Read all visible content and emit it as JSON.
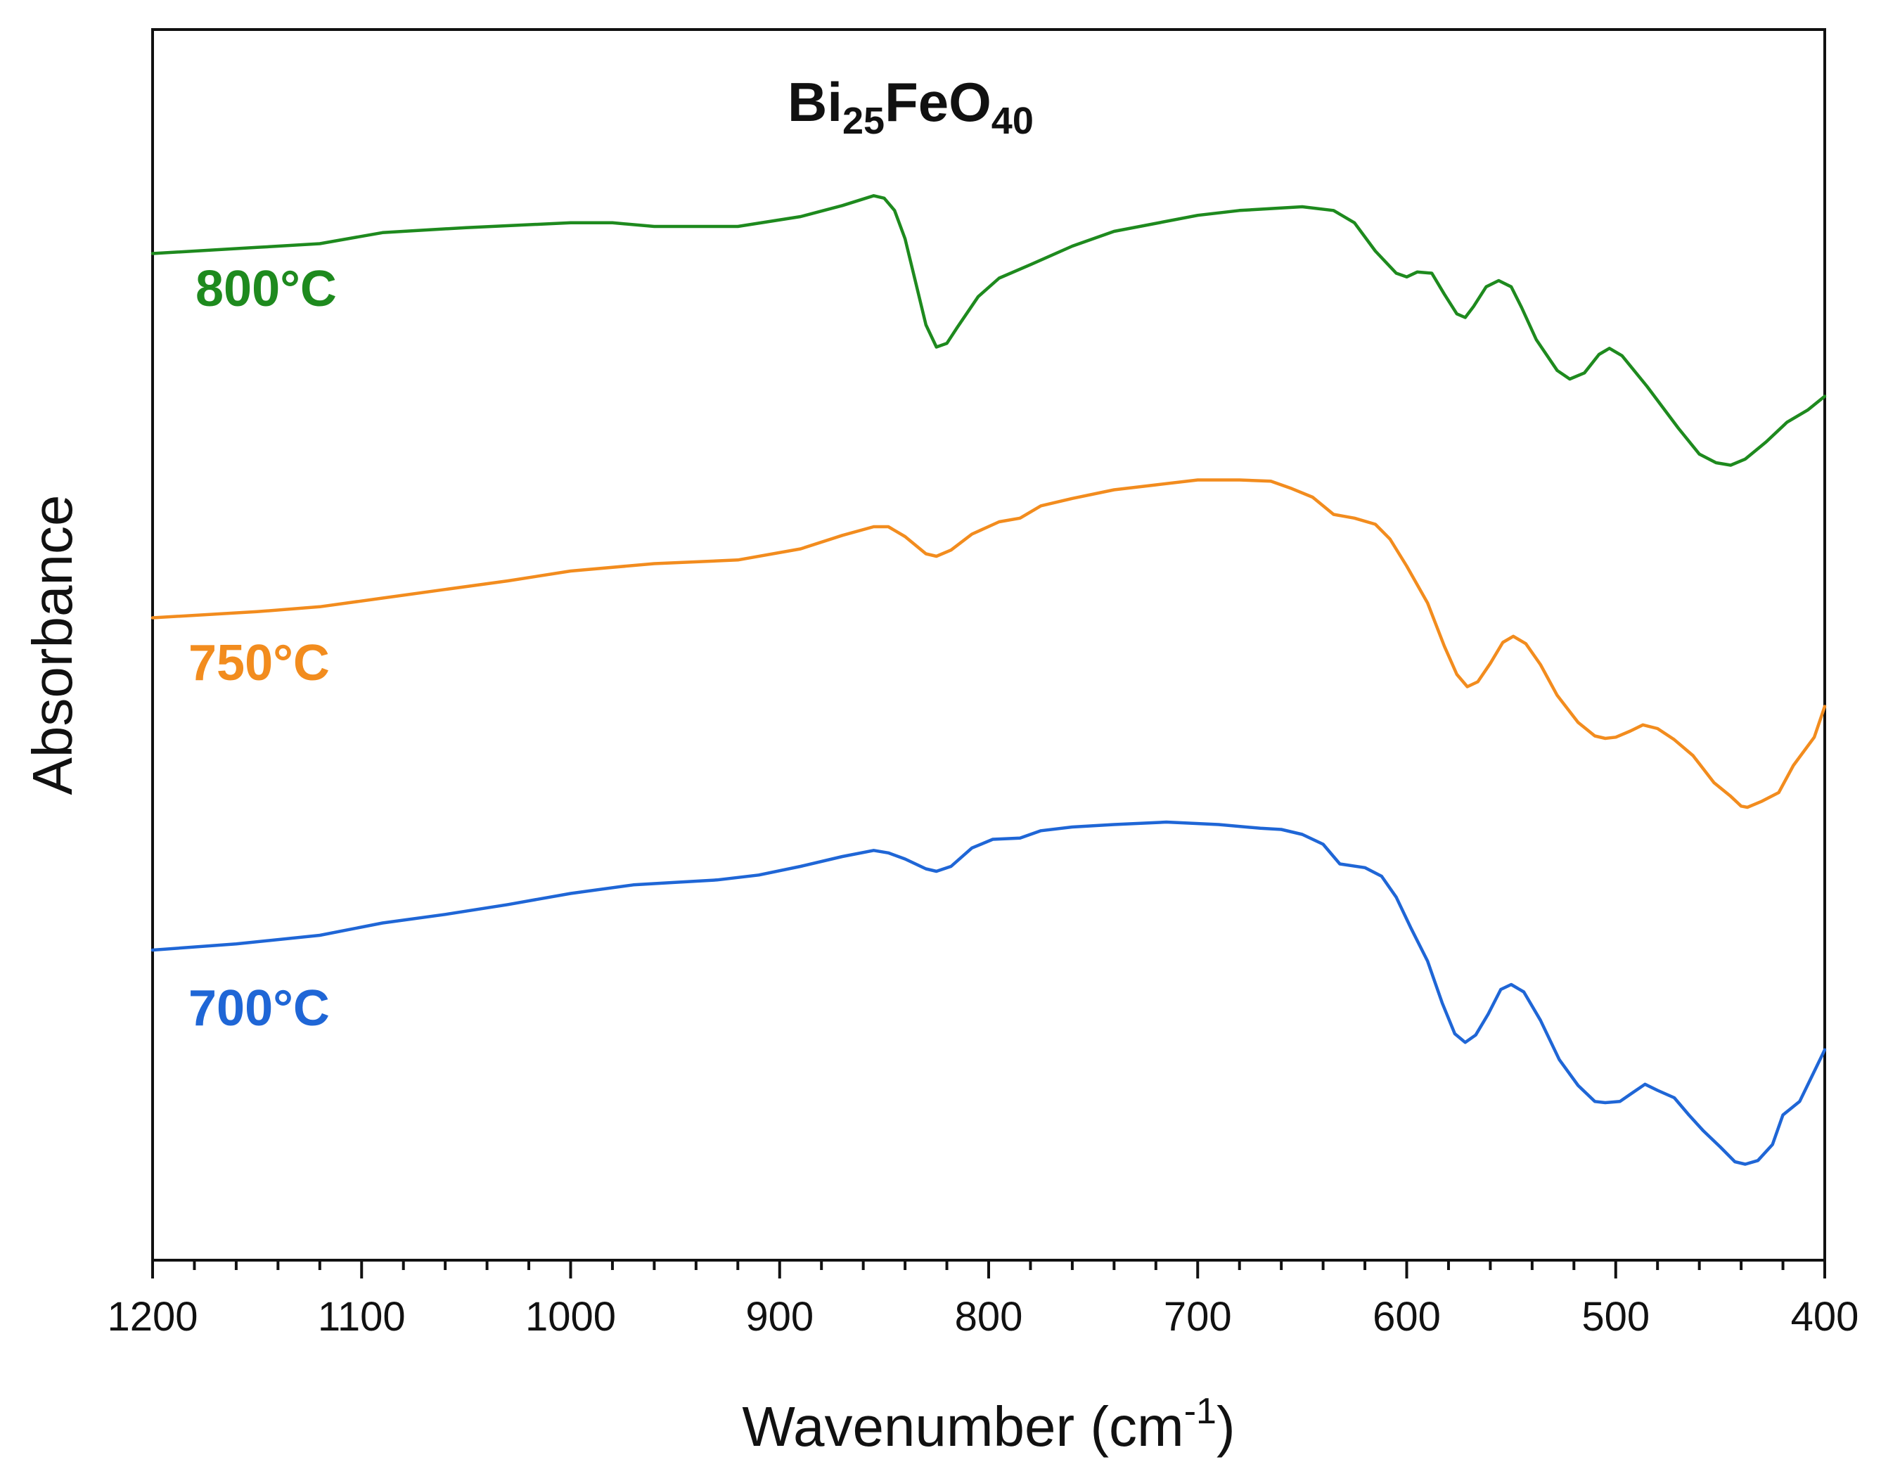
{
  "chart_data": {
    "type": "line",
    "title": {
      "main": "Bi",
      "sub1": "25",
      "mid": "FeO",
      "sub2": "40"
    },
    "xlabel": {
      "text": "Wavenumber (cm",
      "sup": "-1",
      "close": ")"
    },
    "ylabel": "Absorbance",
    "xlim": [
      1200,
      400
    ],
    "x_reversed": true,
    "ylim": [
      0,
      100
    ],
    "x_ticks": [
      1200,
      1100,
      1000,
      900,
      800,
      700,
      600,
      500,
      400
    ],
    "x_tick_labels": [
      "1200",
      "1100",
      "1000",
      "900",
      "800",
      "700",
      "600",
      "500",
      "400"
    ],
    "y_ticks_shown": false,
    "series": [
      {
        "name": "800°C",
        "color": "#1e8a1e",
        "points": [
          [
            1200,
            81.8
          ],
          [
            1150,
            82.3
          ],
          [
            1120,
            82.6
          ],
          [
            1090,
            83.5
          ],
          [
            1050,
            83.9
          ],
          [
            1000,
            84.3
          ],
          [
            980,
            84.3
          ],
          [
            960,
            84.0
          ],
          [
            920,
            84.0
          ],
          [
            890,
            84.8
          ],
          [
            870,
            85.7
          ],
          [
            855,
            86.5
          ],
          [
            850,
            86.3
          ],
          [
            845,
            85.3
          ],
          [
            840,
            83.0
          ],
          [
            835,
            79.5
          ],
          [
            830,
            76.0
          ],
          [
            825,
            74.2
          ],
          [
            820,
            74.5
          ],
          [
            815,
            75.8
          ],
          [
            805,
            78.3
          ],
          [
            795,
            79.8
          ],
          [
            780,
            80.9
          ],
          [
            760,
            82.4
          ],
          [
            740,
            83.6
          ],
          [
            700,
            84.9
          ],
          [
            680,
            85.3
          ],
          [
            660,
            85.5
          ],
          [
            650,
            85.6
          ],
          [
            635,
            85.3
          ],
          [
            625,
            84.3
          ],
          [
            615,
            82.0
          ],
          [
            605,
            80.2
          ],
          [
            600,
            79.9
          ],
          [
            595,
            80.3
          ],
          [
            588,
            80.2
          ],
          [
            582,
            78.5
          ],
          [
            576,
            76.9
          ],
          [
            572,
            76.6
          ],
          [
            568,
            77.5
          ],
          [
            562,
            79.1
          ],
          [
            556,
            79.6
          ],
          [
            550,
            79.1
          ],
          [
            545,
            77.4
          ],
          [
            538,
            74.8
          ],
          [
            528,
            72.3
          ],
          [
            522,
            71.6
          ],
          [
            515,
            72.1
          ],
          [
            508,
            73.6
          ],
          [
            503,
            74.1
          ],
          [
            497,
            73.5
          ],
          [
            485,
            71.0
          ],
          [
            470,
            67.6
          ],
          [
            460,
            65.5
          ],
          [
            452,
            64.8
          ],
          [
            445,
            64.6
          ],
          [
            438,
            65.1
          ],
          [
            428,
            66.5
          ],
          [
            418,
            68.1
          ],
          [
            408,
            69.1
          ],
          [
            400,
            70.2
          ]
        ]
      },
      {
        "name": "750°C",
        "color": "#f28c1e",
        "points": [
          [
            1200,
            52.2
          ],
          [
            1150,
            52.7
          ],
          [
            1120,
            53.1
          ],
          [
            1090,
            53.8
          ],
          [
            1060,
            54.5
          ],
          [
            1030,
            55.2
          ],
          [
            1000,
            56.0
          ],
          [
            960,
            56.6
          ],
          [
            920,
            56.9
          ],
          [
            890,
            57.8
          ],
          [
            870,
            58.9
          ],
          [
            855,
            59.6
          ],
          [
            848,
            59.6
          ],
          [
            840,
            58.8
          ],
          [
            830,
            57.4
          ],
          [
            825,
            57.2
          ],
          [
            818,
            57.7
          ],
          [
            808,
            59.0
          ],
          [
            795,
            60.0
          ],
          [
            785,
            60.3
          ],
          [
            775,
            61.3
          ],
          [
            760,
            61.9
          ],
          [
            740,
            62.6
          ],
          [
            720,
            63.0
          ],
          [
            700,
            63.4
          ],
          [
            680,
            63.4
          ],
          [
            665,
            63.3
          ],
          [
            655,
            62.7
          ],
          [
            645,
            62.0
          ],
          [
            635,
            60.6
          ],
          [
            625,
            60.3
          ],
          [
            615,
            59.8
          ],
          [
            608,
            58.6
          ],
          [
            600,
            56.4
          ],
          [
            590,
            53.4
          ],
          [
            582,
            49.9
          ],
          [
            576,
            47.6
          ],
          [
            571,
            46.6
          ],
          [
            566,
            47.0
          ],
          [
            560,
            48.5
          ],
          [
            554,
            50.2
          ],
          [
            549,
            50.7
          ],
          [
            543,
            50.1
          ],
          [
            536,
            48.4
          ],
          [
            528,
            45.9
          ],
          [
            518,
            43.7
          ],
          [
            510,
            42.6
          ],
          [
            505,
            42.4
          ],
          [
            500,
            42.5
          ],
          [
            493,
            43.0
          ],
          [
            487,
            43.5
          ],
          [
            480,
            43.2
          ],
          [
            472,
            42.3
          ],
          [
            463,
            41.0
          ],
          [
            453,
            38.8
          ],
          [
            445,
            37.7
          ],
          [
            440,
            36.9
          ],
          [
            437,
            36.8
          ],
          [
            430,
            37.3
          ],
          [
            422,
            38.0
          ],
          [
            415,
            40.2
          ],
          [
            405,
            42.5
          ],
          [
            400,
            45.0
          ]
        ]
      },
      {
        "name": "700°C",
        "color": "#1f66d6",
        "points": [
          [
            1200,
            25.2
          ],
          [
            1160,
            25.7
          ],
          [
            1120,
            26.4
          ],
          [
            1090,
            27.4
          ],
          [
            1060,
            28.1
          ],
          [
            1030,
            28.9
          ],
          [
            1000,
            29.8
          ],
          [
            970,
            30.5
          ],
          [
            950,
            30.7
          ],
          [
            930,
            30.9
          ],
          [
            910,
            31.3
          ],
          [
            890,
            32.0
          ],
          [
            870,
            32.8
          ],
          [
            855,
            33.3
          ],
          [
            848,
            33.1
          ],
          [
            840,
            32.6
          ],
          [
            830,
            31.8
          ],
          [
            825,
            31.6
          ],
          [
            818,
            32.0
          ],
          [
            808,
            33.5
          ],
          [
            798,
            34.2
          ],
          [
            785,
            34.3
          ],
          [
            775,
            34.9
          ],
          [
            760,
            35.2
          ],
          [
            740,
            35.4
          ],
          [
            715,
            35.6
          ],
          [
            690,
            35.4
          ],
          [
            670,
            35.1
          ],
          [
            660,
            35.0
          ],
          [
            650,
            34.6
          ],
          [
            640,
            33.8
          ],
          [
            632,
            32.2
          ],
          [
            620,
            31.9
          ],
          [
            612,
            31.2
          ],
          [
            605,
            29.5
          ],
          [
            598,
            27.0
          ],
          [
            590,
            24.3
          ],
          [
            583,
            20.9
          ],
          [
            577,
            18.4
          ],
          [
            572,
            17.7
          ],
          [
            567,
            18.3
          ],
          [
            561,
            20.0
          ],
          [
            555,
            22.0
          ],
          [
            550,
            22.4
          ],
          [
            544,
            21.8
          ],
          [
            536,
            19.5
          ],
          [
            527,
            16.3
          ],
          [
            518,
            14.2
          ],
          [
            510,
            12.9
          ],
          [
            505,
            12.8
          ],
          [
            498,
            12.9
          ],
          [
            492,
            13.6
          ],
          [
            486,
            14.3
          ],
          [
            480,
            13.8
          ],
          [
            472,
            13.2
          ],
          [
            465,
            11.8
          ],
          [
            458,
            10.5
          ],
          [
            450,
            9.2
          ],
          [
            443,
            8.0
          ],
          [
            438,
            7.8
          ],
          [
            432,
            8.1
          ],
          [
            425,
            9.4
          ],
          [
            420,
            11.8
          ],
          [
            412,
            12.9
          ],
          [
            406,
            15.0
          ],
          [
            400,
            17.1
          ]
        ]
      }
    ]
  }
}
